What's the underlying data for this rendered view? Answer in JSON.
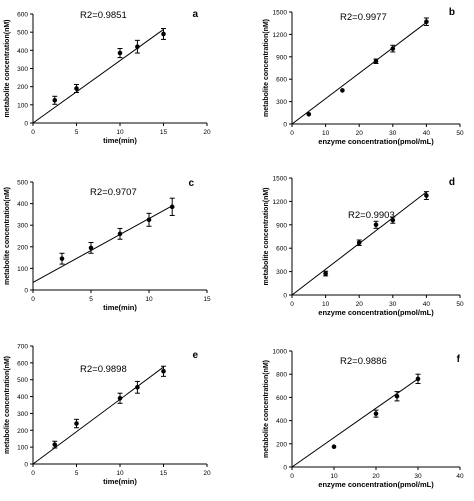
{
  "chart_data": [
    {
      "panel": "a",
      "type": "scatter",
      "r2": "R2=0.9851",
      "xlabel": "time(min)",
      "ylabel": "metabolite concentration(nM)",
      "xlim": [
        0,
        20
      ],
      "ylim": [
        0,
        600
      ],
      "xticks": [
        "0",
        "5",
        "10",
        "15",
        "20"
      ],
      "yticks": [
        "0",
        "100",
        "200",
        "300",
        "400",
        "500",
        "600"
      ],
      "x": [
        2.5,
        5,
        10,
        12,
        15
      ],
      "y": [
        125,
        190,
        385,
        420,
        490
      ],
      "err": [
        22,
        22,
        25,
        35,
        30
      ],
      "fit": [
        [
          0,
          0
        ],
        [
          15,
          515
        ]
      ]
    },
    {
      "panel": "b",
      "type": "scatter",
      "r2": "R2=0.9977",
      "xlabel": "enzyme concentration(pmol/mL)",
      "ylabel": "metabolite concentration(nM)",
      "xlim": [
        0,
        50
      ],
      "ylim": [
        0,
        1500
      ],
      "xticks": [
        "0",
        "10",
        "20",
        "30",
        "40",
        "50"
      ],
      "yticks": [
        "0",
        "300",
        "600",
        "900",
        "1200",
        "1500"
      ],
      "x": [
        5,
        15,
        25,
        30,
        40
      ],
      "y": [
        130,
        450,
        840,
        1010,
        1370
      ],
      "err": [
        0,
        0,
        30,
        45,
        50
      ],
      "fit": [
        [
          0,
          0
        ],
        [
          40,
          1360
        ]
      ]
    },
    {
      "panel": "c",
      "type": "scatter",
      "r2": "R2=0.9707",
      "xlabel": "time(min)",
      "ylabel": "metabolite concentration(nM)",
      "xlim": [
        0,
        15
      ],
      "ylim": [
        0,
        500
      ],
      "xticks": [
        "0",
        "5",
        "10",
        "15"
      ],
      "yticks": [
        "0",
        "100",
        "200",
        "300",
        "400",
        "500"
      ],
      "x": [
        2.5,
        5,
        7.5,
        10,
        12
      ],
      "y": [
        145,
        195,
        260,
        325,
        385
      ],
      "err": [
        25,
        25,
        25,
        30,
        40
      ],
      "fit": [
        [
          0,
          35
        ],
        [
          12,
          390
        ]
      ]
    },
    {
      "panel": "d",
      "type": "scatter",
      "r2": "R2=0.9903",
      "xlabel": "enzyme concentration(pmol/mL)",
      "ylabel": "metabolite concentration(nM)",
      "xlim": [
        0,
        50
      ],
      "ylim": [
        0,
        1500
      ],
      "xticks": [
        "0",
        "10",
        "20",
        "30",
        "40",
        "50"
      ],
      "yticks": [
        "0",
        "300",
        "600",
        "900",
        "1200",
        "1500"
      ],
      "x": [
        10,
        20,
        25,
        30,
        40
      ],
      "y": [
        275,
        670,
        900,
        960,
        1275
      ],
      "err": [
        30,
        35,
        45,
        40,
        50
      ],
      "fit": [
        [
          0,
          0
        ],
        [
          40,
          1320
        ]
      ]
    },
    {
      "panel": "e",
      "type": "scatter",
      "r2": "R2=0.9898",
      "xlabel": "time(min)",
      "ylabel": "metabolite concentration(nM)",
      "xlim": [
        0,
        20
      ],
      "ylim": [
        0,
        700
      ],
      "xticks": [
        "0",
        "5",
        "10",
        "15",
        "20"
      ],
      "yticks": [
        "0",
        "100",
        "200",
        "300",
        "400",
        "500",
        "600",
        "700"
      ],
      "x": [
        2.5,
        5,
        10,
        12,
        15
      ],
      "y": [
        115,
        240,
        390,
        455,
        550
      ],
      "err": [
        20,
        25,
        30,
        35,
        30
      ],
      "fit": [
        [
          0,
          0
        ],
        [
          15,
          575
        ]
      ]
    },
    {
      "panel": "f",
      "type": "scatter",
      "r2": "R2=0.9886",
      "xlabel": "enzyme concentration(pmol/mL)",
      "ylabel": "metabolite concentration(nM)",
      "xlim": [
        0,
        40
      ],
      "ylim": [
        0,
        1000
      ],
      "xticks": [
        "0",
        "10",
        "20",
        "30",
        "40"
      ],
      "yticks": [
        "0",
        "200",
        "400",
        "600",
        "800",
        "1000"
      ],
      "x": [
        10,
        20,
        25,
        30
      ],
      "y": [
        175,
        460,
        610,
        760
      ],
      "err": [
        0,
        30,
        40,
        40
      ],
      "fit": [
        [
          0,
          0
        ],
        [
          30,
          760
        ]
      ]
    }
  ]
}
